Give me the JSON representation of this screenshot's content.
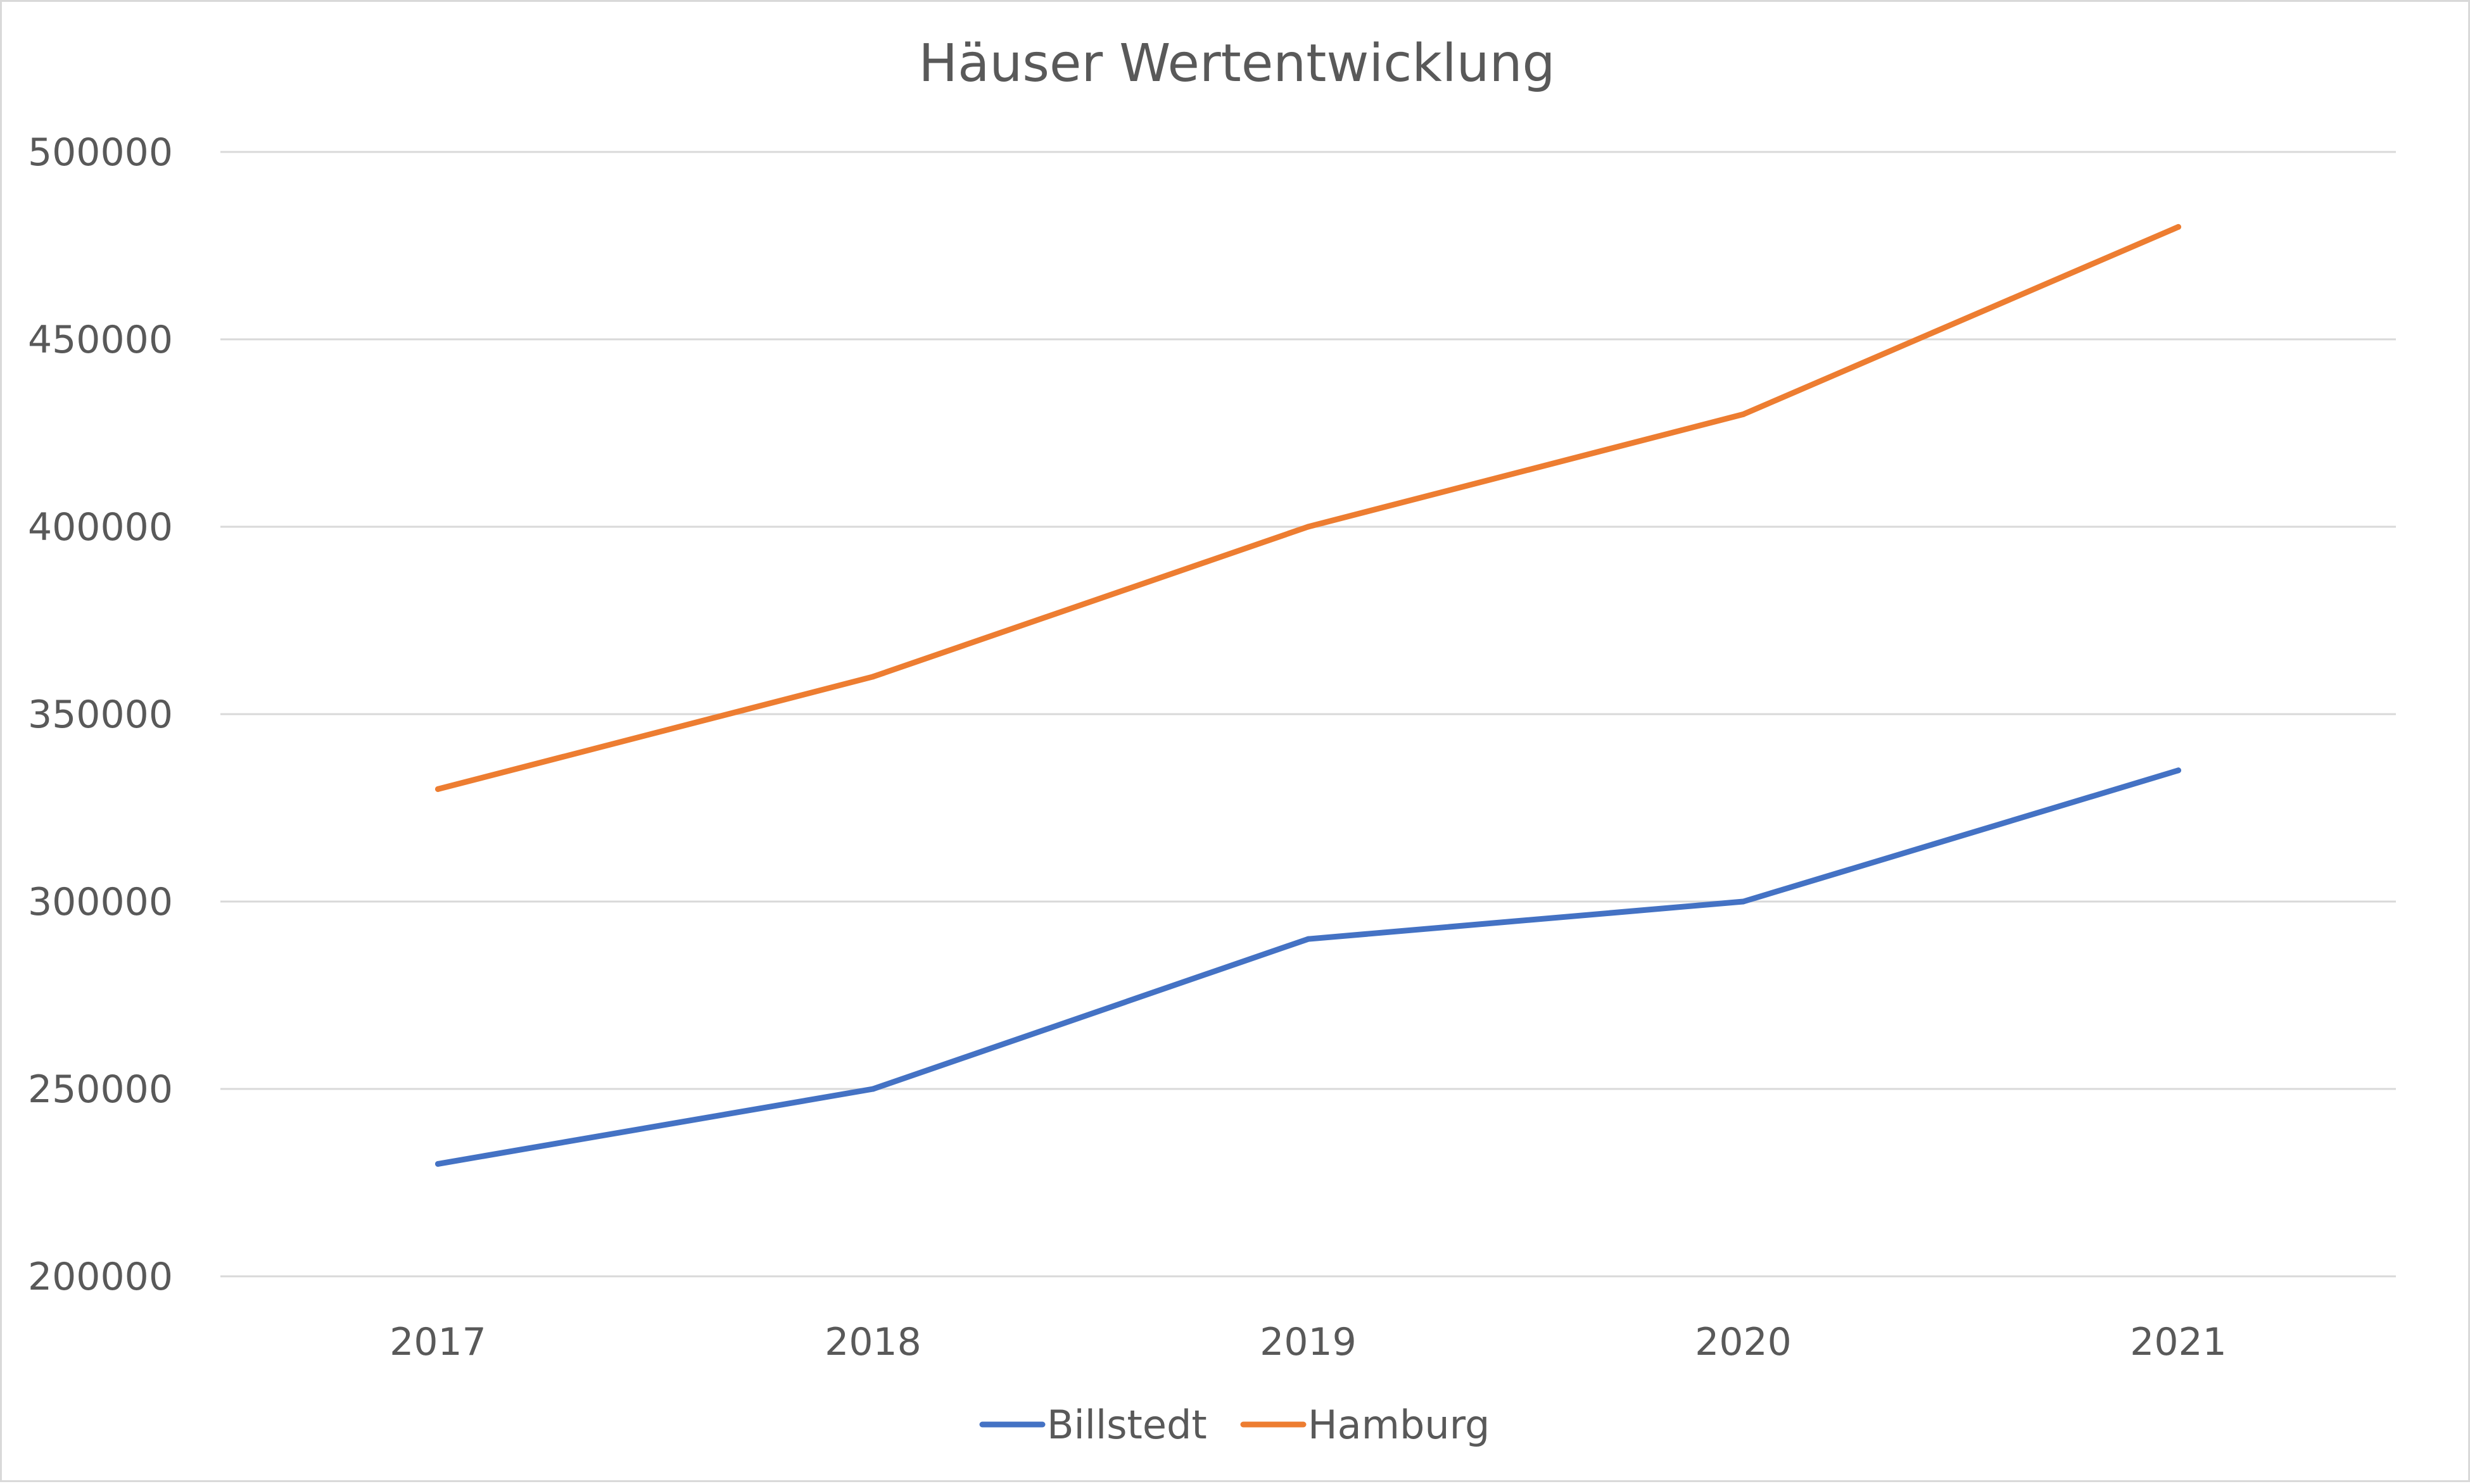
{
  "chart_data": {
    "type": "line",
    "title": "Häuser Wertentwicklung",
    "xlabel": "",
    "ylabel": "",
    "categories": [
      "2017",
      "2018",
      "2019",
      "2020",
      "2021"
    ],
    "series": [
      {
        "name": "Billstedt",
        "color": "#4472c4",
        "values": [
          230000,
          250000,
          290000,
          300000,
          335000
        ]
      },
      {
        "name": "Hamburg",
        "color": "#ed7d31",
        "values": [
          330000,
          360000,
          400000,
          430000,
          480000
        ]
      }
    ],
    "ylim": [
      200000,
      500000
    ],
    "yticks": [
      "200000",
      "250000",
      "300000",
      "350000",
      "400000",
      "450000",
      "500000"
    ],
    "grid": true,
    "gridline_color": "#d9d9d9",
    "legend_position": "bottom"
  }
}
